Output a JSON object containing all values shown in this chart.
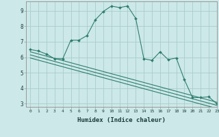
{
  "xlabel": "Humidex (Indice chaleur)",
  "xlim": [
    -0.5,
    23
  ],
  "ylim": [
    2.8,
    9.6
  ],
  "yticks": [
    3,
    4,
    5,
    6,
    7,
    8,
    9
  ],
  "xticks": [
    0,
    1,
    2,
    3,
    4,
    5,
    6,
    7,
    8,
    9,
    10,
    11,
    12,
    13,
    14,
    15,
    16,
    17,
    18,
    19,
    20,
    21,
    22,
    23
  ],
  "background_color": "#cce8e8",
  "grid_color": "#aacccc",
  "line_color": "#2e7d6e",
  "line1_x": [
    0,
    1,
    2,
    3,
    4,
    5,
    6,
    7,
    8,
    9,
    10,
    11,
    12,
    13,
    14,
    15,
    16,
    17,
    18,
    19,
    20,
    21,
    22,
    23
  ],
  "line1_y": [
    6.5,
    6.4,
    6.2,
    5.9,
    5.9,
    7.1,
    7.1,
    7.4,
    8.4,
    8.95,
    9.3,
    9.2,
    9.3,
    8.5,
    5.9,
    5.8,
    6.35,
    5.85,
    5.95,
    4.55,
    3.4,
    3.4,
    3.45,
    3.0
  ],
  "line2_x": [
    0,
    23
  ],
  "line2_y": [
    6.35,
    3.1
  ],
  "line3_x": [
    0,
    23
  ],
  "line3_y": [
    6.15,
    2.9
  ],
  "line4_x": [
    0,
    23
  ],
  "line4_y": [
    5.95,
    2.7
  ]
}
